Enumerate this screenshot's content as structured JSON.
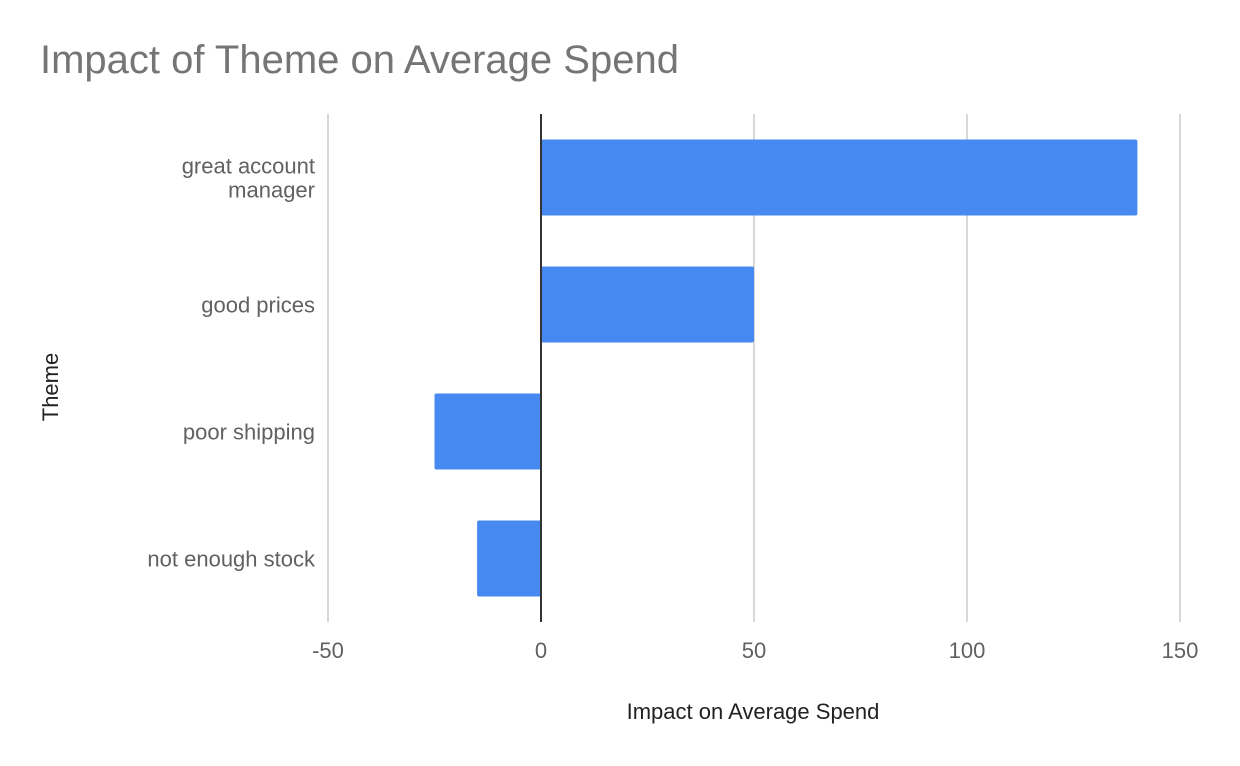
{
  "chart_data": {
    "type": "bar",
    "orientation": "horizontal",
    "title": "Impact of Theme on Average Spend",
    "xlabel": "Impact on Average Spend",
    "ylabel": "Theme",
    "categories": [
      "great account\nmanager",
      "good prices",
      "poor shipping",
      "not enough stock"
    ],
    "values": [
      140,
      50,
      -25,
      -15
    ],
    "xlim": [
      -50,
      150
    ],
    "xticks": [
      "-50",
      "0",
      "50",
      "100",
      "150"
    ],
    "xtick_values": [
      -50,
      0,
      50,
      100,
      150
    ],
    "grid": true,
    "legend": "none",
    "bar_color": "#4589f1",
    "grid_color": "#cccccc",
    "zero_line_color": "#333333"
  }
}
